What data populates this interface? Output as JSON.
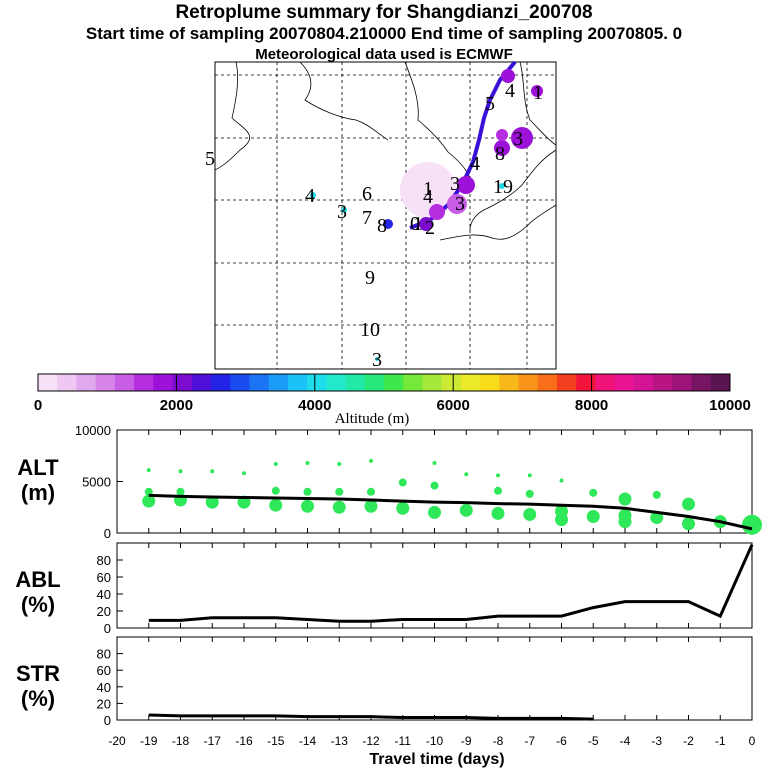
{
  "header": {
    "title": "Retroplume summary for Shangdianzi_200708",
    "sampling_line": "Start time of sampling 20070804.210000     End time of sampling 20070805.     0",
    "met_line": "Meteorological data used is ECMWF"
  },
  "colorbar": {
    "tick_labels": [
      "0",
      "2000",
      "4000",
      "6000",
      "8000",
      "10000"
    ],
    "label": "Altitude (m)",
    "colors": [
      "#f7e1f7",
      "#eec7f2",
      "#e2a8ee",
      "#d784ea",
      "#c95ee6",
      "#b52fe0",
      "#9c12d8",
      "#7c0ccf",
      "#4f10d9",
      "#2424e6",
      "#1a4cf0",
      "#1a74f3",
      "#1a9cf6",
      "#1cc2f6",
      "#1fdcea",
      "#22e8cc",
      "#22e8a8",
      "#26e878",
      "#3fe84a",
      "#76e83a",
      "#a4e83a",
      "#ccea34",
      "#eaea2a",
      "#f8dc1a",
      "#f8b81a",
      "#f8941a",
      "#f86e1a",
      "#f23f1f",
      "#f2143a",
      "#f01478",
      "#e81494",
      "#d41494",
      "#b81484",
      "#9c1478",
      "#781464",
      "#5a1450"
    ]
  },
  "map_labels": [
    "5",
    "4",
    "6",
    "3",
    "7",
    "8",
    "9",
    "10",
    "3",
    "0",
    "4",
    "1",
    "2",
    "3",
    "3",
    "4",
    "5",
    "4",
    "1",
    "3",
    "19",
    "1",
    "8"
  ],
  "chart_data": [
    {
      "type": "line",
      "panel": "ALT",
      "ylabel": "ALT",
      "yunit": "(m)",
      "ylim": [
        0,
        10000
      ],
      "yticks": [
        "0",
        "5000",
        "10000"
      ],
      "x": [
        -19,
        -18,
        -17,
        -16,
        -15,
        -14,
        -13,
        -12,
        -11,
        -10,
        -9,
        -8,
        -7,
        -6,
        -5,
        -4,
        -3,
        -2,
        -1,
        0
      ],
      "series": [
        {
          "name": "mean altitude",
          "values": [
            3650,
            3550,
            3500,
            3450,
            3400,
            3350,
            3300,
            3200,
            3100,
            3000,
            2950,
            2850,
            2800,
            2700,
            2600,
            2400,
            2000,
            1600,
            1100,
            400
          ]
        }
      ],
      "scatter_points": [
        [
          -19,
          6100
        ],
        [
          -19,
          4000
        ],
        [
          -19,
          3100
        ],
        [
          -18,
          6000
        ],
        [
          -18,
          4000
        ],
        [
          -18,
          3200
        ],
        [
          -17,
          6000
        ],
        [
          -17,
          3000
        ],
        [
          -16,
          5800
        ],
        [
          -16,
          3000
        ],
        [
          -15,
          6700
        ],
        [
          -15,
          4100
        ],
        [
          -15,
          2700
        ],
        [
          -14,
          6800
        ],
        [
          -14,
          4000
        ],
        [
          -14,
          2600
        ],
        [
          -13,
          6700
        ],
        [
          -13,
          4000
        ],
        [
          -13,
          2500
        ],
        [
          -12,
          7000
        ],
        [
          -12,
          4000
        ],
        [
          -12,
          2600
        ],
        [
          -11,
          4900
        ],
        [
          -11,
          2400
        ],
        [
          -10,
          6800
        ],
        [
          -10,
          4600
        ],
        [
          -10,
          2000
        ],
        [
          -9,
          5700
        ],
        [
          -9,
          2200
        ],
        [
          -8,
          5600
        ],
        [
          -8,
          4100
        ],
        [
          -8,
          1900
        ],
        [
          -7,
          5600
        ],
        [
          -7,
          3800
        ],
        [
          -7,
          1800
        ],
        [
          -6,
          5100
        ],
        [
          -6,
          2100
        ],
        [
          -6,
          1300
        ],
        [
          -5,
          3900
        ],
        [
          -5,
          1600
        ],
        [
          -4,
          3300
        ],
        [
          -4,
          1700
        ],
        [
          -4,
          1100
        ],
        [
          -3,
          3700
        ],
        [
          -3,
          1500
        ],
        [
          -2,
          2800
        ],
        [
          -2,
          900
        ],
        [
          -1,
          1100
        ],
        [
          0,
          800
        ],
        [
          0,
          700
        ]
      ],
      "xlabel": "Travel time (days)",
      "xlim": [
        -20,
        0
      ]
    },
    {
      "type": "line",
      "panel": "ABL",
      "ylabel": "ABL",
      "yunit": "(%)",
      "ylim": [
        0,
        100
      ],
      "yticks": [
        "0",
        "20",
        "40",
        "60",
        "80"
      ],
      "x": [
        -19,
        -18,
        -17,
        -16,
        -15,
        -14,
        -13,
        -12,
        -11,
        -10,
        -9,
        -8,
        -7,
        -6,
        -5,
        -4,
        -3,
        -2,
        -1,
        0
      ],
      "series": [
        {
          "name": "ABL fraction",
          "values": [
            9,
            9,
            12,
            12,
            12,
            10,
            8,
            8,
            10,
            10,
            10,
            14,
            14,
            14,
            24,
            31,
            31,
            31,
            14,
            98
          ]
        }
      ],
      "xlim": [
        -20,
        0
      ]
    },
    {
      "type": "line",
      "panel": "STR",
      "ylabel": "STR",
      "yunit": "(%)",
      "ylim": [
        0,
        100
      ],
      "yticks": [
        "0",
        "20",
        "40",
        "60",
        "80"
      ],
      "x": [
        -19,
        -18,
        -17,
        -16,
        -15,
        -14,
        -13,
        -12,
        -11,
        -10,
        -9,
        -8,
        -7,
        -6,
        -5
      ],
      "series": [
        {
          "name": "stratospheric fraction",
          "values": [
            6,
            5,
            5,
            5,
            5,
            4,
            4,
            4,
            3,
            3,
            3,
            2,
            2,
            2,
            1
          ]
        }
      ],
      "xlim": [
        -20,
        0
      ],
      "xticks": [
        "-20",
        "-19",
        "-18",
        "-17",
        "-16",
        "-15",
        "-14",
        "-13",
        "-12",
        "-11",
        "-10",
        "-9",
        "-8",
        "-7",
        "-6",
        "-5",
        "-4",
        "-3",
        "-2",
        "-1",
        "0"
      ],
      "xlabel": "Travel time (days)"
    }
  ]
}
